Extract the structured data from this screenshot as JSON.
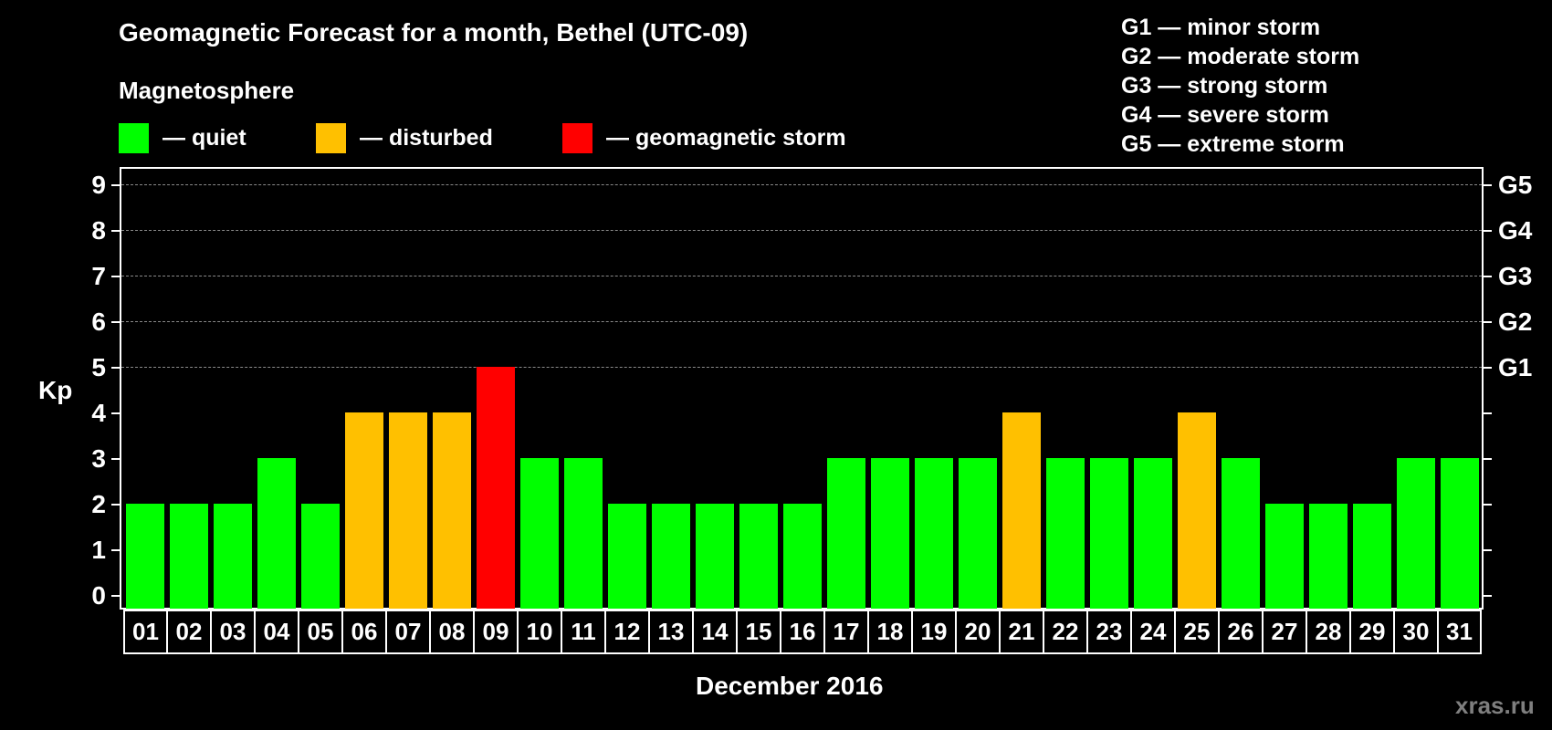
{
  "header": {
    "title": "Geomagnetic Forecast for a month, Bethel (UTC-09)",
    "subtitle": "Magnetosphere"
  },
  "legend": {
    "items": [
      {
        "label": "— quiet",
        "color": "#00ff00"
      },
      {
        "label": "— disturbed",
        "color": "#ffc000"
      },
      {
        "label": "— geomagnetic storm",
        "color": "#ff0000"
      }
    ]
  },
  "storm_scale": {
    "items": [
      "G1 — minor storm",
      "G2 — moderate storm",
      "G3 — strong storm",
      "G4 — severe storm",
      "G5 — extreme storm"
    ]
  },
  "axis": {
    "ylabel": "Kp",
    "xlabel": "December 2016",
    "yticks": [
      "0",
      "1",
      "2",
      "3",
      "4",
      "5",
      "6",
      "7",
      "8",
      "9"
    ],
    "right_labels": [
      {
        "value": 5,
        "label": "G1"
      },
      {
        "value": 6,
        "label": "G2"
      },
      {
        "value": 7,
        "label": "G3"
      },
      {
        "value": 8,
        "label": "G4"
      },
      {
        "value": 9,
        "label": "G5"
      }
    ]
  },
  "watermark": "xras.ru",
  "chart_data": {
    "type": "bar",
    "title": "Geomagnetic Forecast for a month, Bethel (UTC-09)",
    "subtitle": "Magnetosphere",
    "xlabel": "December 2016",
    "ylabel": "Kp",
    "ylim": [
      0,
      9
    ],
    "grid": "dashed horizontal at Kp 5-9",
    "legend_position": "top",
    "categories": [
      "01",
      "02",
      "03",
      "04",
      "05",
      "06",
      "07",
      "08",
      "09",
      "10",
      "11",
      "12",
      "13",
      "14",
      "15",
      "16",
      "17",
      "18",
      "19",
      "20",
      "21",
      "22",
      "23",
      "24",
      "25",
      "26",
      "27",
      "28",
      "29",
      "30",
      "31"
    ],
    "values": [
      2,
      2,
      2,
      3,
      2,
      4,
      4,
      4,
      5,
      3,
      3,
      2,
      2,
      2,
      2,
      2,
      3,
      3,
      3,
      3,
      4,
      3,
      3,
      3,
      4,
      3,
      2,
      2,
      2,
      3,
      3
    ],
    "status": [
      "quiet",
      "quiet",
      "quiet",
      "quiet",
      "quiet",
      "disturbed",
      "disturbed",
      "disturbed",
      "storm",
      "quiet",
      "quiet",
      "quiet",
      "quiet",
      "quiet",
      "quiet",
      "quiet",
      "quiet",
      "quiet",
      "quiet",
      "quiet",
      "disturbed",
      "quiet",
      "quiet",
      "quiet",
      "disturbed",
      "quiet",
      "quiet",
      "quiet",
      "quiet",
      "quiet",
      "quiet"
    ],
    "colors": {
      "quiet": "#00ff00",
      "disturbed": "#ffc000",
      "storm": "#ff0000"
    },
    "right_axis": {
      "5": "G1",
      "6": "G2",
      "7": "G3",
      "8": "G4",
      "9": "G5"
    },
    "legend": [
      "quiet",
      "disturbed",
      "geomagnetic storm"
    ]
  }
}
